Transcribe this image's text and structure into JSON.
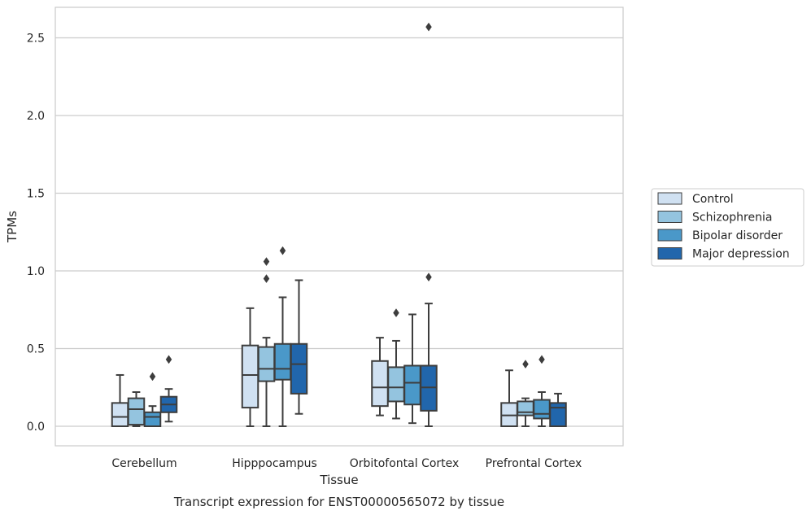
{
  "chart_data": {
    "type": "boxplot",
    "title": "",
    "caption": "Transcript expression for ENST00000565072 by tissue",
    "xlabel": "Tissue",
    "ylabel": "TPMs",
    "ylim": [
      -0.12,
      2.7
    ],
    "yticks": [
      0.0,
      0.5,
      1.0,
      1.5,
      2.0,
      2.5
    ],
    "ytick_labels": [
      "0.0",
      "0.5",
      "1.0",
      "1.5",
      "2.0",
      "2.5"
    ],
    "grid": "horizontal",
    "legend_position": "right",
    "categories": [
      "Cerebellum",
      "Hipppocampus",
      "Orbitofontal Cortex",
      "Prefrontal Cortex"
    ],
    "series": [
      {
        "name": "Control",
        "color": "#d0e1f2",
        "boxes": [
          {
            "min": 0.0,
            "q1": 0.0,
            "median": 0.06,
            "q3": 0.15,
            "max": 0.33,
            "outliers": []
          },
          {
            "min": 0.0,
            "q1": 0.12,
            "median": 0.33,
            "q3": 0.52,
            "max": 0.76,
            "outliers": []
          },
          {
            "min": 0.07,
            "q1": 0.13,
            "median": 0.25,
            "q3": 0.42,
            "max": 0.57,
            "outliers": []
          },
          {
            "min": 0.0,
            "q1": 0.0,
            "median": 0.07,
            "q3": 0.15,
            "max": 0.36,
            "outliers": []
          }
        ]
      },
      {
        "name": "Schizophrenia",
        "color": "#94c4df",
        "boxes": [
          {
            "min": 0.0,
            "q1": 0.01,
            "median": 0.11,
            "q3": 0.18,
            "max": 0.22,
            "outliers": []
          },
          {
            "min": 0.0,
            "q1": 0.29,
            "median": 0.37,
            "q3": 0.51,
            "max": 0.57,
            "outliers": [
              0.95,
              1.06
            ]
          },
          {
            "min": 0.05,
            "q1": 0.16,
            "median": 0.25,
            "q3": 0.38,
            "max": 0.55,
            "outliers": [
              0.73
            ]
          },
          {
            "min": 0.0,
            "q1": 0.07,
            "median": 0.09,
            "q3": 0.16,
            "max": 0.18,
            "outliers": [
              0.4
            ]
          }
        ]
      },
      {
        "name": "Bipolar disorder",
        "color": "#4a98c9",
        "boxes": [
          {
            "min": 0.0,
            "q1": 0.0,
            "median": 0.06,
            "q3": 0.09,
            "max": 0.13,
            "outliers": [
              0.32
            ]
          },
          {
            "min": 0.0,
            "q1": 0.3,
            "median": 0.37,
            "q3": 0.53,
            "max": 0.83,
            "outliers": [
              1.13
            ]
          },
          {
            "min": 0.02,
            "q1": 0.14,
            "median": 0.28,
            "q3": 0.39,
            "max": 0.72,
            "outliers": []
          },
          {
            "min": 0.0,
            "q1": 0.05,
            "median": 0.08,
            "q3": 0.17,
            "max": 0.22,
            "outliers": [
              0.43
            ]
          }
        ]
      },
      {
        "name": "Major depression",
        "color": "#2166ac",
        "boxes": [
          {
            "min": 0.03,
            "q1": 0.09,
            "median": 0.14,
            "q3": 0.19,
            "max": 0.24,
            "outliers": [
              0.43
            ]
          },
          {
            "min": 0.08,
            "q1": 0.21,
            "median": 0.4,
            "q3": 0.53,
            "max": 0.94,
            "outliers": []
          },
          {
            "min": 0.0,
            "q1": 0.1,
            "median": 0.25,
            "q3": 0.39,
            "max": 0.79,
            "outliers": [
              0.96,
              2.57
            ]
          },
          {
            "min": 0.0,
            "q1": 0.0,
            "median": 0.12,
            "q3": 0.15,
            "max": 0.21,
            "outliers": []
          }
        ]
      }
    ]
  }
}
